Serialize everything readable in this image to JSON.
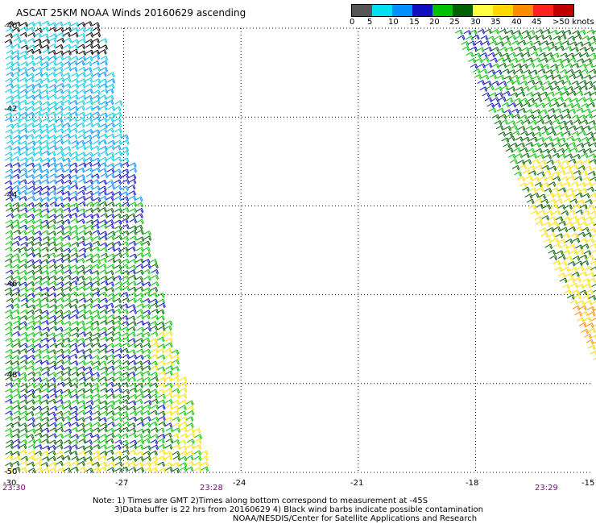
{
  "title": "ASCAT 25KM NOAA Winds 20160629 ascending",
  "legend": {
    "colors": [
      "#555555",
      "#00e0f0",
      "#0090ff",
      "#1010c0",
      "#00c000",
      "#006000",
      "#ffff40",
      "#ffd800",
      "#ff8c00",
      "#ff2020",
      "#c00000",
      "#8b4513",
      "#c000c0",
      "#c000e0",
      "#3a006a"
    ],
    "labels": [
      "0",
      "5",
      "10",
      "15",
      "20",
      "25",
      "30",
      "35",
      "40",
      "45",
      ">50 knots"
    ]
  },
  "map": {
    "lat_labels": [
      "-40",
      "-42",
      "-44",
      "-46",
      "-48",
      "-50"
    ],
    "lon_labels": [
      "-30",
      "-27",
      "-24",
      "-21",
      "-18",
      "-15"
    ],
    "time_labels": [
      "23:30",
      "23:28",
      "23:29"
    ]
  },
  "notes": {
    "line1": "Note: 1) Times are GMT 2)Times along bottom correspond to measurement at -45S",
    "line2": "3)Data buffer is 22 hrs from 20160629 4) Black wind barbs indicate possible contamination",
    "line3": "NOAA/NESDIS/Center for Satellite Applications and Research"
  },
  "swaths": [
    {
      "name": "west-swath",
      "lat_range": [
        -50,
        -40
      ],
      "lon_range": [
        -30,
        -24.5
      ]
    },
    {
      "name": "east-swath",
      "lat_range": [
        -48.2,
        -40
      ],
      "lon_range": [
        -17.6,
        -15
      ]
    }
  ]
}
